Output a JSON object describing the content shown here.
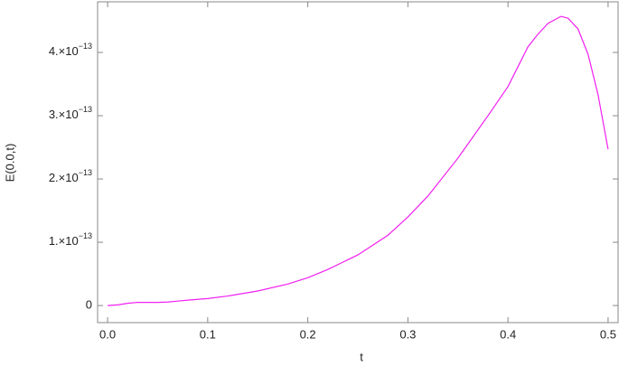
{
  "chart_data": {
    "type": "line",
    "x_label": "t",
    "y_label": "E(0.0,t)",
    "x": [
      0,
      0.01,
      0.02,
      0.03,
      0.04,
      0.05,
      0.06,
      0.07,
      0.08,
      0.1,
      0.12,
      0.15,
      0.18,
      0.2,
      0.22,
      0.25,
      0.28,
      0.3,
      0.32,
      0.35,
      0.38,
      0.4,
      0.42,
      0.43,
      0.44,
      0.453,
      0.46,
      0.47,
      0.48,
      0.49,
      0.5
    ],
    "series": [
      {
        "color": "#f020f0",
        "values": [
          0,
          1e-15,
          3.5e-15,
          5e-15,
          5e-15,
          5e-15,
          5.5e-15,
          7e-15,
          8.5e-15,
          1.1e-14,
          1.5e-14,
          2.3e-14,
          3.4e-14,
          4.4e-14,
          5.7e-14,
          8e-14,
          1.11e-13,
          1.4e-13,
          1.73e-13,
          2.33e-13,
          3e-13,
          3.46e-13,
          4.09e-13,
          4.29e-13,
          4.46e-13,
          4.57e-13,
          4.54e-13,
          4.37e-13,
          3.97e-13,
          3.33e-13,
          2.47e-13
        ]
      }
    ],
    "xlim": [
      -0.01,
      0.51
    ],
    "ylim": [
      -2.7e-14,
      4.8e-13
    ],
    "xticks": [
      {
        "value": 0,
        "label": "0.0"
      },
      0.1,
      0.2,
      0.3,
      0.4,
      0.5
    ],
    "yticks": [
      0,
      {
        "value": 1e-13,
        "label": "1.×10−13"
      },
      {
        "value": 2e-13,
        "label": "2.×10−13"
      },
      {
        "value": 3e-13,
        "label": "3.×10−13"
      },
      {
        "value": 4e-13,
        "label": "4.×10−13"
      }
    ]
  }
}
